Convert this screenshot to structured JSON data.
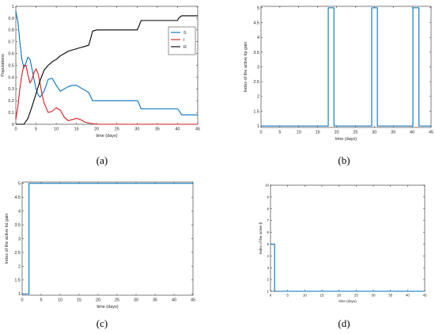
{
  "captions": [
    "(a)",
    "(b)",
    "(c)",
    "(d)"
  ],
  "chart_data": [
    {
      "panel": "a",
      "type": "line",
      "title": "",
      "xlabel": "time (days)",
      "ylabel": "Populations",
      "xlim": [
        0,
        45
      ],
      "ylim": [
        0,
        1
      ],
      "xticks": [
        0,
        5,
        10,
        15,
        20,
        25,
        30,
        35,
        40,
        45
      ],
      "yticks": [
        0,
        0.1,
        0.2,
        0.3,
        0.4,
        0.5,
        0.6,
        0.7,
        0.8,
        0.9,
        1
      ],
      "grid": false,
      "legend": "top-right",
      "series": [
        {
          "name": "S",
          "color": "#0072bd",
          "x": [
            0,
            0.5,
            1,
            1.5,
            2,
            2.5,
            3,
            3.5,
            4,
            4.5,
            5,
            5.5,
            6,
            7,
            8,
            9,
            10,
            11,
            12,
            13,
            14,
            15,
            16,
            17,
            18,
            18.3,
            19,
            20,
            25,
            30,
            30.3,
            31,
            35,
            40,
            40.3,
            41,
            45
          ],
          "y": [
            0.96,
            0.87,
            0.7,
            0.55,
            0.48,
            0.52,
            0.57,
            0.55,
            0.47,
            0.38,
            0.3,
            0.25,
            0.23,
            0.28,
            0.38,
            0.39,
            0.33,
            0.28,
            0.3,
            0.32,
            0.33,
            0.33,
            0.31,
            0.29,
            0.27,
            0.25,
            0.2,
            0.2,
            0.2,
            0.2,
            0.19,
            0.13,
            0.13,
            0.13,
            0.12,
            0.08,
            0.08
          ]
        },
        {
          "name": "I",
          "color": "#d7191c",
          "x": [
            0,
            0.5,
            1,
            1.5,
            2,
            2.5,
            3,
            3.5,
            4,
            4.5,
            5,
            5.5,
            6,
            6.5,
            7,
            8,
            9,
            10,
            11,
            12,
            13,
            14,
            15,
            16,
            17,
            18,
            20,
            25,
            30,
            45
          ],
          "y": [
            0.04,
            0.15,
            0.3,
            0.42,
            0.5,
            0.5,
            0.42,
            0.35,
            0.38,
            0.44,
            0.47,
            0.43,
            0.35,
            0.25,
            0.18,
            0.1,
            0.11,
            0.14,
            0.12,
            0.06,
            0.03,
            0.04,
            0.05,
            0.04,
            0.02,
            0.01,
            0.0,
            0.0,
            0.0,
            0.0
          ]
        },
        {
          "name": "R",
          "color": "#000000",
          "x": [
            0,
            1,
            2,
            3,
            4,
            5,
            6,
            7,
            8,
            9,
            10,
            11,
            12,
            13,
            14,
            15,
            16,
            17,
            18,
            18.3,
            19,
            20,
            25,
            29,
            30,
            30.3,
            31,
            35,
            40,
            40.3,
            41,
            45
          ],
          "y": [
            0,
            0,
            0,
            0.05,
            0.15,
            0.26,
            0.37,
            0.46,
            0.5,
            0.53,
            0.55,
            0.58,
            0.6,
            0.62,
            0.63,
            0.64,
            0.65,
            0.66,
            0.67,
            0.7,
            0.79,
            0.8,
            0.8,
            0.8,
            0.8,
            0.82,
            0.88,
            0.88,
            0.88,
            0.9,
            0.92,
            0.92
          ]
        }
      ]
    },
    {
      "panel": "b",
      "type": "line",
      "title": "",
      "xlabel": "time (days)",
      "ylabel": "Index of the active kp gain",
      "xlim": [
        0,
        45
      ],
      "ylim": [
        0.95,
        5.05
      ],
      "xticks": [
        0,
        5,
        10,
        15,
        20,
        25,
        30,
        35,
        40,
        45
      ],
      "yticks": [
        1,
        1.5,
        2,
        2.5,
        3,
        3.5,
        4,
        4.5,
        5
      ],
      "grid": false,
      "series": [
        {
          "name": "",
          "color": "#0072bd",
          "x": [
            0,
            17.8,
            17.8,
            19.3,
            19.3,
            29.3,
            29.3,
            30.8,
            30.8,
            40.2,
            40.2,
            41.8,
            41.8,
            45
          ],
          "y": [
            1,
            1,
            5,
            5,
            1,
            1,
            5,
            5,
            1,
            1,
            5,
            5,
            1,
            1
          ]
        }
      ]
    },
    {
      "panel": "c",
      "type": "line",
      "title": "",
      "xlabel": "time (days)",
      "ylabel": "Index of the active kd gain",
      "xlim": [
        0,
        45
      ],
      "ylim": [
        0.95,
        5.05
      ],
      "xticks": [
        0,
        5,
        10,
        15,
        20,
        25,
        30,
        35,
        40,
        45
      ],
      "yticks": [
        1,
        1.5,
        2,
        2.5,
        3,
        3.5,
        4,
        4.5,
        5
      ],
      "grid": false,
      "series": [
        {
          "name": "",
          "color": "#0072bd",
          "x": [
            0,
            1.8,
            1.8,
            45
          ],
          "y": [
            1,
            1,
            5,
            5
          ]
        }
      ]
    },
    {
      "panel": "d",
      "type": "line",
      "title": "",
      "xlabel": "time (days)",
      "ylabel": "Index of the active β",
      "xlim": [
        0,
        45
      ],
      "ylim": [
        1,
        10
      ],
      "xticks": [
        0,
        5,
        10,
        15,
        20,
        25,
        30,
        35,
        40,
        45
      ],
      "yticks": [
        1,
        2,
        3,
        4,
        5,
        6,
        7,
        8,
        9,
        10
      ],
      "grid": false,
      "series": [
        {
          "name": "",
          "color": "#0072bd",
          "x": [
            0,
            1.2,
            1.2,
            45
          ],
          "y": [
            5,
            5,
            1,
            1
          ]
        }
      ]
    }
  ]
}
